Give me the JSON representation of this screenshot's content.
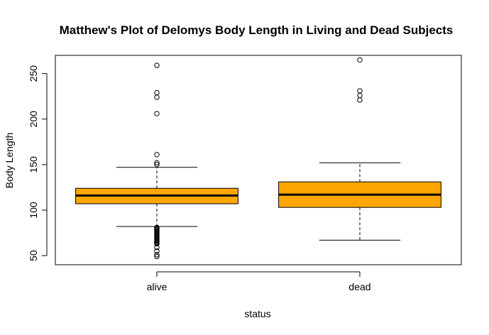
{
  "chart_data": {
    "type": "boxplot",
    "title": "Matthew's Plot of Delomys Body Length in Living and Dead Subjects",
    "xlabel": "status",
    "ylabel": "Body Length",
    "categories": [
      "alive",
      "dead"
    ],
    "ylim": [
      40,
      270
    ],
    "yticks": [
      50,
      100,
      150,
      200,
      250
    ],
    "box_color": "#FFA500",
    "boxes": [
      {
        "category": "alive",
        "whisker_low": 82,
        "q1": 107,
        "median": 116,
        "q3": 124,
        "whisker_high": 147,
        "outliers": [
          259,
          229,
          224,
          206,
          161,
          152,
          150,
          81,
          80,
          79,
          78,
          77,
          76,
          75,
          74,
          73,
          72,
          71,
          70,
          69,
          68,
          67,
          66,
          65,
          64,
          63,
          59,
          55,
          51,
          49
        ]
      },
      {
        "category": "dead",
        "whisker_low": 67,
        "q1": 103,
        "median": 117,
        "q3": 131,
        "whisker_high": 152,
        "outliers": [
          265,
          231,
          226,
          221
        ]
      }
    ],
    "legend": "none",
    "grid": false
  }
}
